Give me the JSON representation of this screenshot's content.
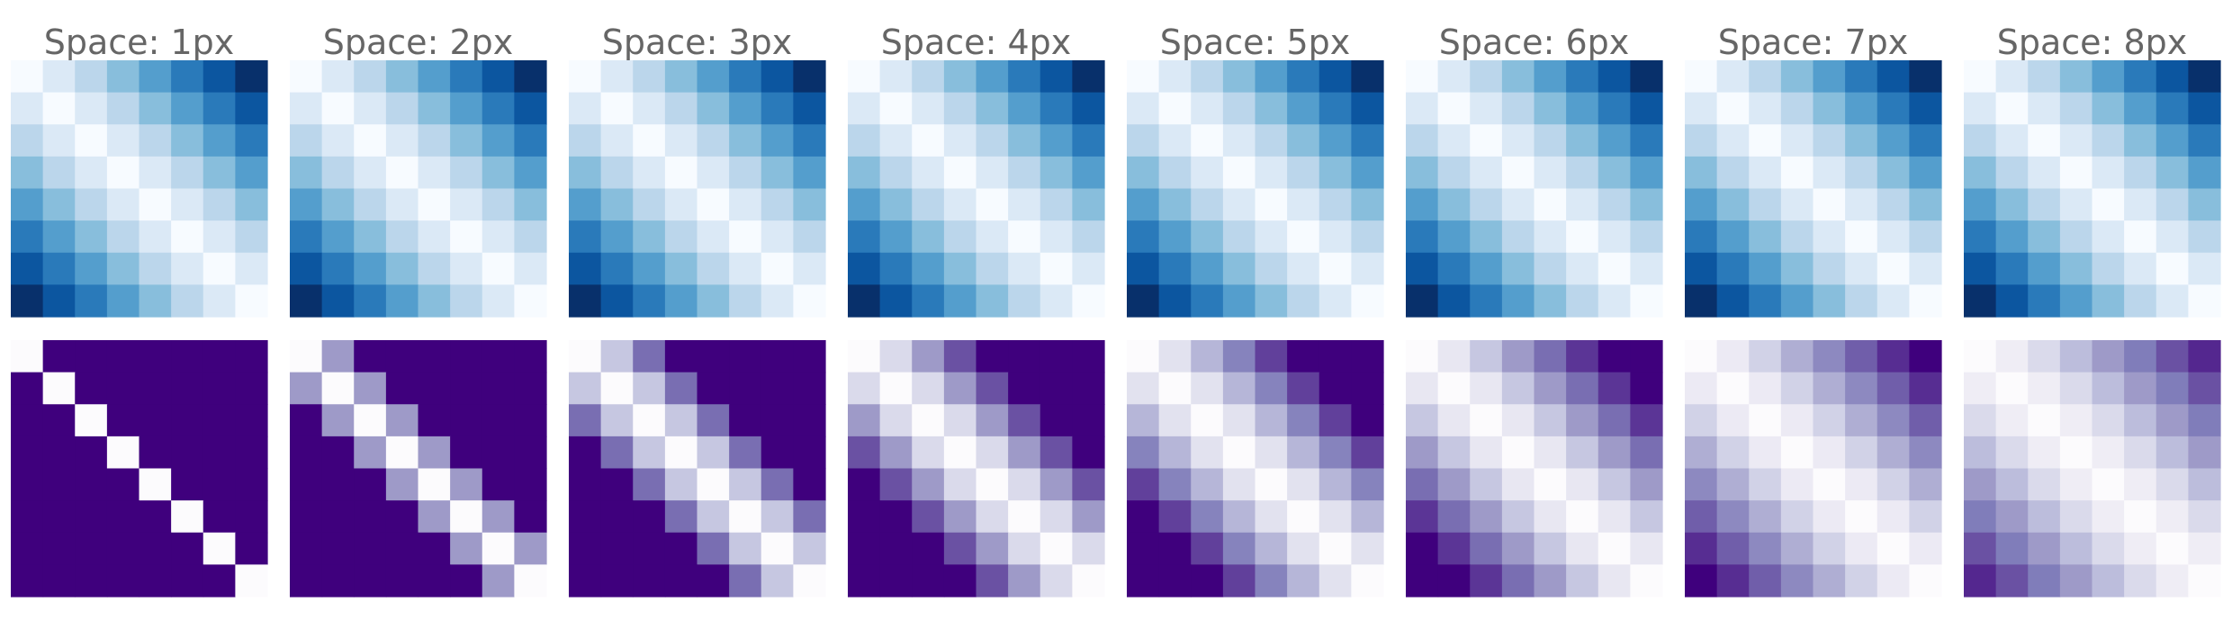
{
  "chart_data": {
    "type": "heatmap",
    "grid_size": 8,
    "grid": false,
    "columns": [
      {
        "title": "Space: 1px",
        "space": 1
      },
      {
        "title": "Space: 2px",
        "space": 2
      },
      {
        "title": "Space: 3px",
        "space": 3
      },
      {
        "title": "Space: 4px",
        "space": 4
      },
      {
        "title": "Space: 5px",
        "space": 5
      },
      {
        "title": "Space: 6px",
        "space": 6
      },
      {
        "title": "Space: 7px",
        "space": 7
      },
      {
        "title": "Space: 8px",
        "space": 8
      }
    ],
    "rows": [
      {
        "colormap": "Blues",
        "value_rule": "distance |i-j|, vmax 7",
        "colors": [
          "#f7fbff",
          "#deebf7",
          "#c6dbef",
          "#9ecae1",
          "#6baed6",
          "#4292c6",
          "#2171b5",
          "#08519c",
          "#08306b"
        ]
      },
      {
        "colormap": "Purples",
        "value_rule": "distance |i-j|, clipped at vmax = space",
        "colors": [
          "#fcfbfd",
          "#efedf5",
          "#dadaeb",
          "#bcbddc",
          "#9e9ac8",
          "#807dba",
          "#6a51a3",
          "#54278f",
          "#3f007d"
        ]
      }
    ]
  }
}
